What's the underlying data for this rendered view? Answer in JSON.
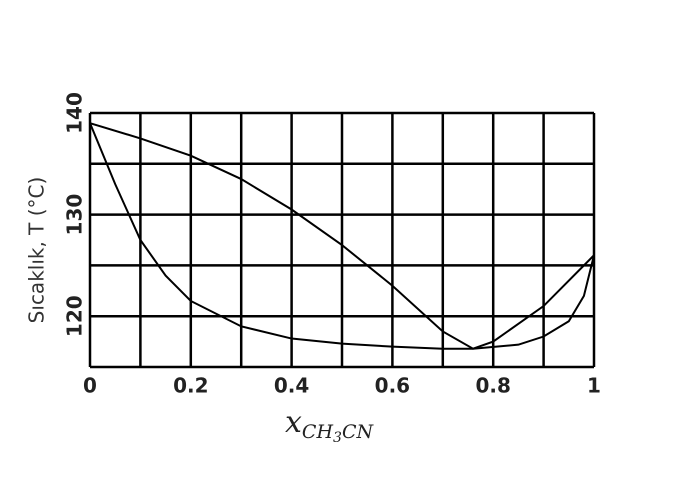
{
  "chart_data": {
    "type": "line",
    "xlabel": [
      "x",
      "CH",
      "3",
      "CN"
    ],
    "ylabel": "Sıcaklık, T (°C)",
    "xlim": [
      0,
      1
    ],
    "ylim": [
      115,
      140
    ],
    "xticks": [
      0,
      0.2,
      0.4,
      0.6,
      0.8,
      1
    ],
    "yticks": [
      120,
      130,
      140
    ],
    "xgrid": [
      0,
      0.1,
      0.2,
      0.3,
      0.4,
      0.5,
      0.6,
      0.7,
      0.8,
      0.9,
      1
    ],
    "ygrid": [
      115,
      120,
      125,
      130,
      135,
      140
    ],
    "series": [
      {
        "color": "#000000",
        "x": [
          0,
          0.1,
          0.2,
          0.3,
          0.4,
          0.5,
          0.6,
          0.7,
          0.76,
          0.8,
          0.9,
          1
        ],
        "values": [
          139,
          137.5,
          135.8,
          133.5,
          130.5,
          127,
          123,
          118.5,
          116.8,
          117.5,
          121,
          126
        ]
      },
      {
        "color": "#000000",
        "x": [
          0,
          0.05,
          0.1,
          0.15,
          0.2,
          0.3,
          0.4,
          0.5,
          0.6,
          0.7,
          0.76,
          0.85,
          0.9,
          0.95,
          0.98,
          1
        ],
        "values": [
          139,
          133,
          127.5,
          124,
          121.5,
          119,
          117.8,
          117.3,
          117,
          116.8,
          116.8,
          117.2,
          118,
          119.5,
          122,
          126
        ]
      }
    ]
  }
}
